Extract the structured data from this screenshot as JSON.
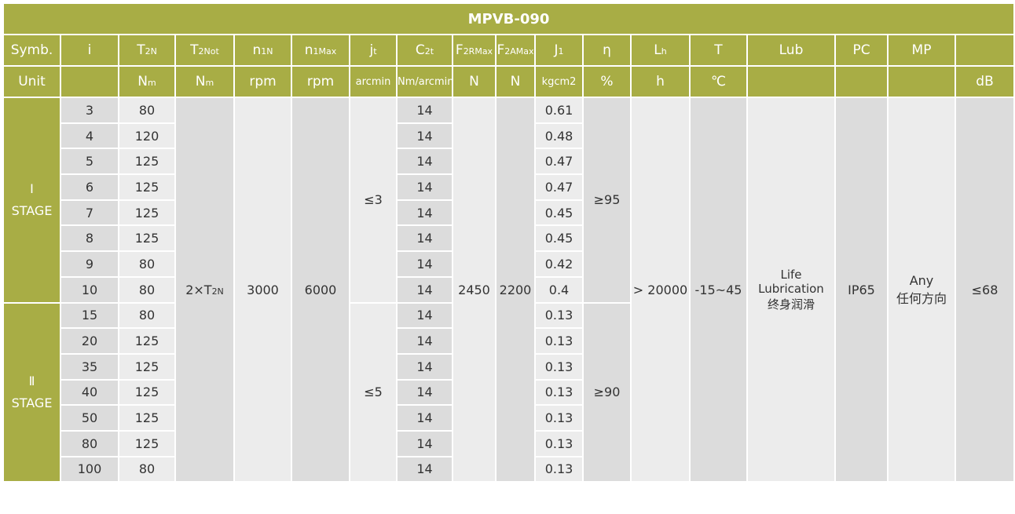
{
  "title": "MPVB-090",
  "header": {
    "symb": "Symb.",
    "unit": "Unit",
    "cols": [
      {
        "main": "i",
        "sub": "",
        "unit": "",
        "unit_sub": ""
      },
      {
        "main": "T",
        "sub": "2N",
        "unit": "N",
        "unit_sub": "m"
      },
      {
        "main": "T",
        "sub": "2Not",
        "unit": "N",
        "unit_sub": "m"
      },
      {
        "main": "n",
        "sub": "1N",
        "unit": "rpm",
        "unit_sub": ""
      },
      {
        "main": "n",
        "sub": "1Max",
        "unit": "rpm",
        "unit_sub": ""
      },
      {
        "main": "j",
        "sub": "t",
        "unit": "arcmin",
        "unit_sub": ""
      },
      {
        "main": "C",
        "sub": "2t",
        "unit": "Nm/arcmin",
        "unit_sub": ""
      },
      {
        "main": "F",
        "sub": "2RMax",
        "unit": "N",
        "unit_sub": ""
      },
      {
        "main": "F",
        "sub": "2AMax",
        "unit": "N",
        "unit_sub": ""
      },
      {
        "main": "J",
        "sub": "1",
        "unit": "kgcm2",
        "unit_sub": ""
      },
      {
        "main": "η",
        "sub": "",
        "unit": "%",
        "unit_sub": ""
      },
      {
        "main": "L",
        "sub": "h",
        "unit": "h",
        "unit_sub": ""
      },
      {
        "main": "T",
        "sub": "",
        "unit": "℃",
        "unit_sub": ""
      },
      {
        "main": "Lub",
        "sub": "",
        "unit": "",
        "unit_sub": ""
      },
      {
        "main": "PC",
        "sub": "",
        "unit": "",
        "unit_sub": ""
      },
      {
        "main": "MP",
        "sub": "",
        "unit": "",
        "unit_sub": ""
      },
      {
        "main": "",
        "sub": "",
        "unit": "dB",
        "unit_sub": ""
      }
    ]
  },
  "stages": [
    {
      "roman": "Ⅰ",
      "label": "STAGE",
      "jt": "≤3",
      "eta": "≥95",
      "rows": [
        [
          "3",
          "80",
          "14",
          "0.61"
        ],
        [
          "4",
          "120",
          "14",
          "0.48"
        ],
        [
          "5",
          "125",
          "14",
          "0.47"
        ],
        [
          "6",
          "125",
          "14",
          "0.47"
        ],
        [
          "7",
          "125",
          "14",
          "0.45"
        ],
        [
          "8",
          "125",
          "14",
          "0.45"
        ],
        [
          "9",
          "80",
          "14",
          "0.42"
        ],
        [
          "10",
          "80",
          "14",
          "0.4"
        ]
      ]
    },
    {
      "roman": "Ⅱ",
      "label": "STAGE",
      "jt": "≤5",
      "eta": "≥90",
      "rows": [
        [
          "15",
          "80",
          "14",
          "0.13"
        ],
        [
          "20",
          "125",
          "14",
          "0.13"
        ],
        [
          "35",
          "125",
          "14",
          "0.13"
        ],
        [
          "40",
          "125",
          "14",
          "0.13"
        ],
        [
          "50",
          "125",
          "14",
          "0.13"
        ],
        [
          "80",
          "125",
          "14",
          "0.13"
        ],
        [
          "100",
          "80",
          "14",
          "0.13"
        ]
      ]
    }
  ],
  "shared": {
    "t2not_main": "2×T",
    "t2not_sub": "2N",
    "n1n": "3000",
    "n1max": "6000",
    "f2r": "2450",
    "f2a": "2200",
    "lh": "> 20000",
    "temp": "-15~45",
    "lub_en1": "Life",
    "lub_en2": "Lubrication",
    "lub_cn": "终身润滑",
    "pc": "IP65",
    "mp_en": "Any",
    "mp_cn": "任何方向",
    "db": "≤68"
  }
}
